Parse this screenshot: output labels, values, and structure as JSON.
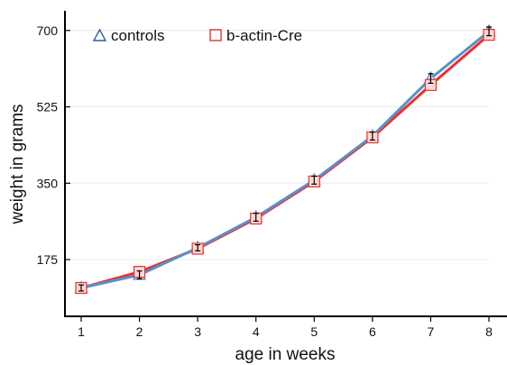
{
  "chart_data": {
    "type": "line",
    "title": "",
    "xlabel": "age in weeks",
    "ylabel": "weight in grams",
    "x": [
      1,
      2,
      3,
      4,
      5,
      6,
      7,
      8
    ],
    "xlim": [
      1,
      8
    ],
    "ylim": [
      45,
      745
    ],
    "yticks": [
      175,
      350,
      525,
      700
    ],
    "grid": "horizontal",
    "legend_position": "top-left",
    "series": [
      {
        "name": "controls",
        "marker": "triangle",
        "color": "#5b8fc9",
        "values": [
          110,
          140,
          202,
          272,
          357,
          458,
          590,
          698
        ],
        "error": [
          7,
          9,
          7,
          9,
          9,
          9,
          11,
          10
        ]
      },
      {
        "name": "b-actin-Cre",
        "marker": "square",
        "color": "#e8312f",
        "values": [
          110,
          147,
          200,
          269,
          354,
          455,
          575,
          690
        ],
        "error": [
          7,
          9,
          7,
          9,
          9,
          9,
          11,
          10
        ]
      }
    ]
  }
}
